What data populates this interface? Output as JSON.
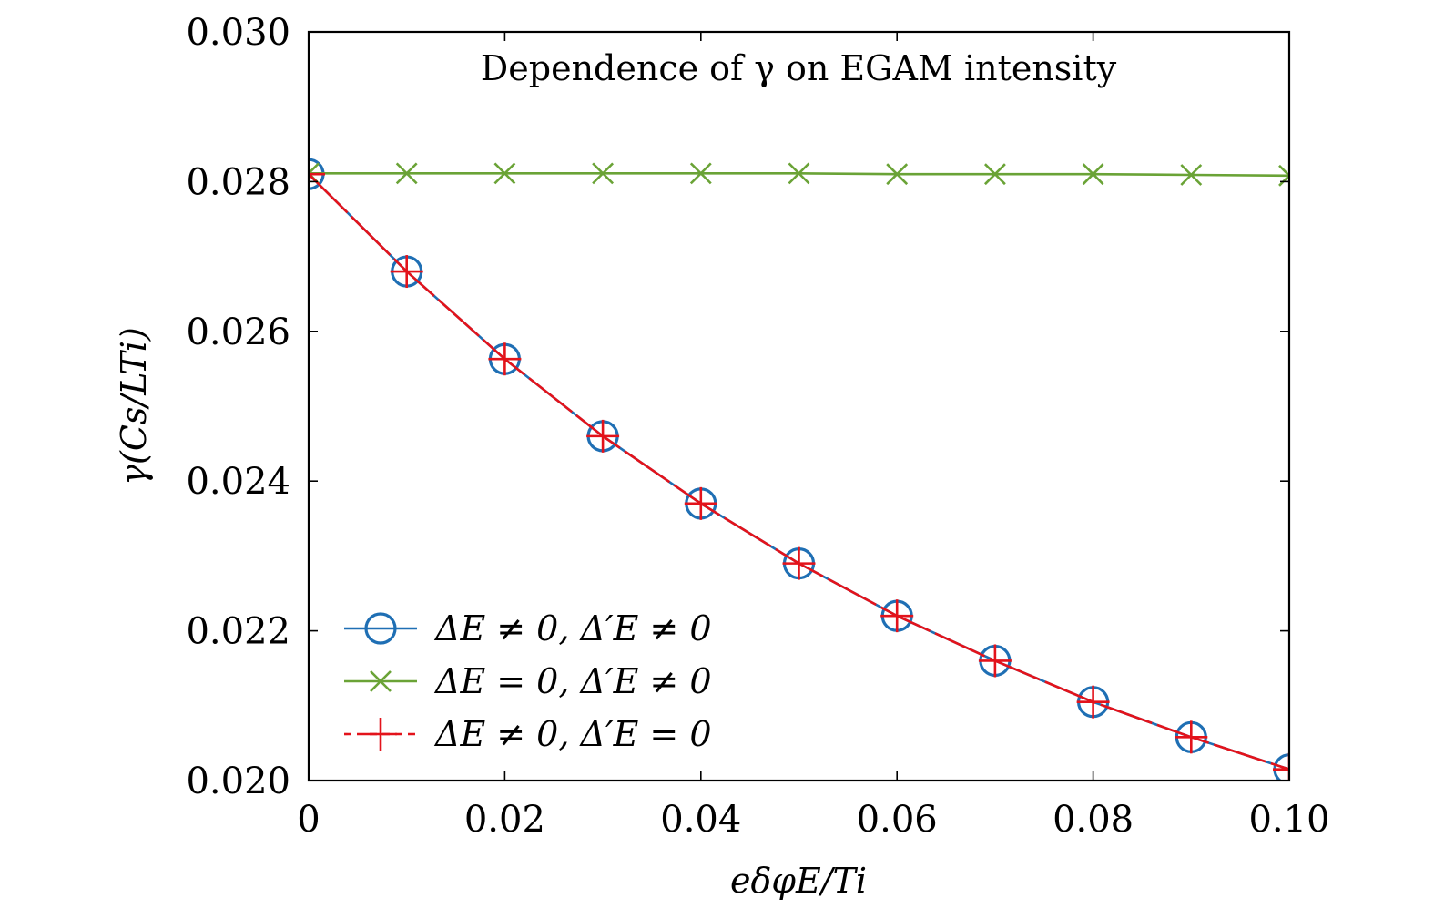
{
  "chart_data": {
    "type": "line",
    "title": "Dependence of γ on EGAM intensity",
    "xlabel": "eδφE/Ti",
    "ylabel": "γ(Cs/LTi)",
    "xlim": [
      0,
      0.1
    ],
    "ylim": [
      0.02,
      0.03
    ],
    "x": [
      0,
      0.01,
      0.02,
      0.03,
      0.04,
      0.05,
      0.06,
      0.07,
      0.08,
      0.09,
      0.1
    ],
    "xticks": [
      "0",
      "0.02",
      "0.04",
      "0.06",
      "0.08",
      "0.10"
    ],
    "yticks": [
      "0.020",
      "0.022",
      "0.024",
      "0.026",
      "0.028",
      "0.030"
    ],
    "legend_position": "bottom-left",
    "series": [
      {
        "name": "ΔE ≠ 0, Δ′E ≠ 0",
        "color": "#1f6fb4",
        "marker": "circle",
        "line": "solid",
        "values": [
          0.0281,
          0.0268,
          0.02563,
          0.0246,
          0.0237,
          0.0229,
          0.0222,
          0.0216,
          0.02105,
          0.02058,
          0.02015
        ]
      },
      {
        "name": "ΔE = 0, Δ′E ≠ 0",
        "color": "#6aa336",
        "marker": "x",
        "line": "solid",
        "values": [
          0.02811,
          0.02811,
          0.02811,
          0.02811,
          0.02811,
          0.02811,
          0.0281,
          0.0281,
          0.0281,
          0.02809,
          0.02808
        ]
      },
      {
        "name": "ΔE ≠ 0, Δ′E = 0",
        "color": "#e3131b",
        "marker": "plus",
        "line": "dashed",
        "values": [
          0.0281,
          0.0268,
          0.02563,
          0.0246,
          0.0237,
          0.0229,
          0.0222,
          0.0216,
          0.02105,
          0.02058,
          0.02015
        ]
      }
    ]
  }
}
